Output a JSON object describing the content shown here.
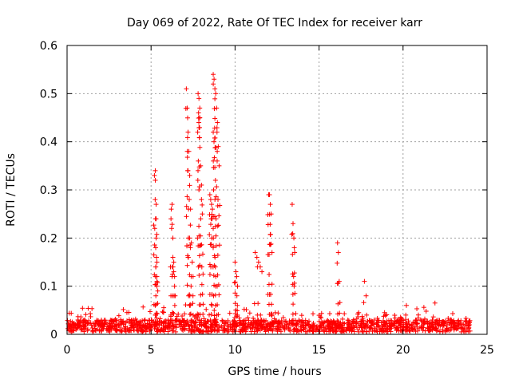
{
  "chart_data": {
    "type": "scatter",
    "title": "Day 069 of 2022, Rate Of TEC Index for receiver karr",
    "xlabel": "GPS time / hours",
    "ylabel": "ROTI / TECUs",
    "xlim": [
      0,
      25
    ],
    "ylim": [
      0,
      0.6
    ],
    "x_ticks": [
      "0",
      "5",
      "10",
      "15",
      "20",
      "25"
    ],
    "y_ticks": [
      "0",
      "0.1",
      "0.2",
      "0.3",
      "0.4",
      "0.5",
      "0.6"
    ],
    "grid": true,
    "marker": "plus",
    "color": "#ff0000",
    "background_level": [
      0.005,
      0.03
    ],
    "series": [
      {
        "x": [
          5.2,
          5.25,
          5.3,
          5.3,
          5.3,
          5.35,
          5.35,
          5.4,
          6.2,
          6.25,
          6.3,
          6.3,
          6.35,
          6.35,
          6.4,
          6.4,
          7.1,
          7.15,
          7.2,
          7.25,
          7.3,
          7.35,
          7.4,
          7.45,
          7.5,
          7.8,
          7.85,
          7.9,
          7.9,
          7.95,
          8.0,
          8.0,
          8.05,
          8.5,
          8.55,
          8.6,
          8.65,
          8.7,
          8.75,
          8.8,
          8.85,
          8.9,
          8.95,
          9.0,
          9.05,
          10.0,
          10.05,
          10.1,
          10.15,
          11.2,
          11.3,
          11.4,
          11.5,
          11.6,
          12.0,
          12.05,
          12.1,
          12.15,
          12.2,
          13.4,
          13.45,
          13.5,
          13.55,
          16.1,
          16.15,
          16.2,
          17.7,
          17.8,
          20.2,
          21.9
        ],
        "y": [
          0.33,
          0.34,
          0.27,
          0.24,
          0.2,
          0.15,
          0.11,
          0.09,
          0.26,
          0.27,
          0.2,
          0.16,
          0.15,
          0.13,
          0.12,
          0.1,
          0.51,
          0.47,
          0.42,
          0.38,
          0.33,
          0.26,
          0.19,
          0.15,
          0.12,
          0.5,
          0.49,
          0.47,
          0.45,
          0.35,
          0.31,
          0.28,
          0.25,
          0.29,
          0.28,
          0.27,
          0.26,
          0.54,
          0.53,
          0.51,
          0.5,
          0.47,
          0.44,
          0.39,
          0.35,
          0.15,
          0.13,
          0.12,
          0.1,
          0.17,
          0.16,
          0.15,
          0.14,
          0.13,
          0.29,
          0.29,
          0.27,
          0.25,
          0.17,
          0.27,
          0.23,
          0.2,
          0.17,
          0.19,
          0.17,
          0.11,
          0.11,
          0.08,
          0.06,
          0.065
        ]
      }
    ]
  }
}
